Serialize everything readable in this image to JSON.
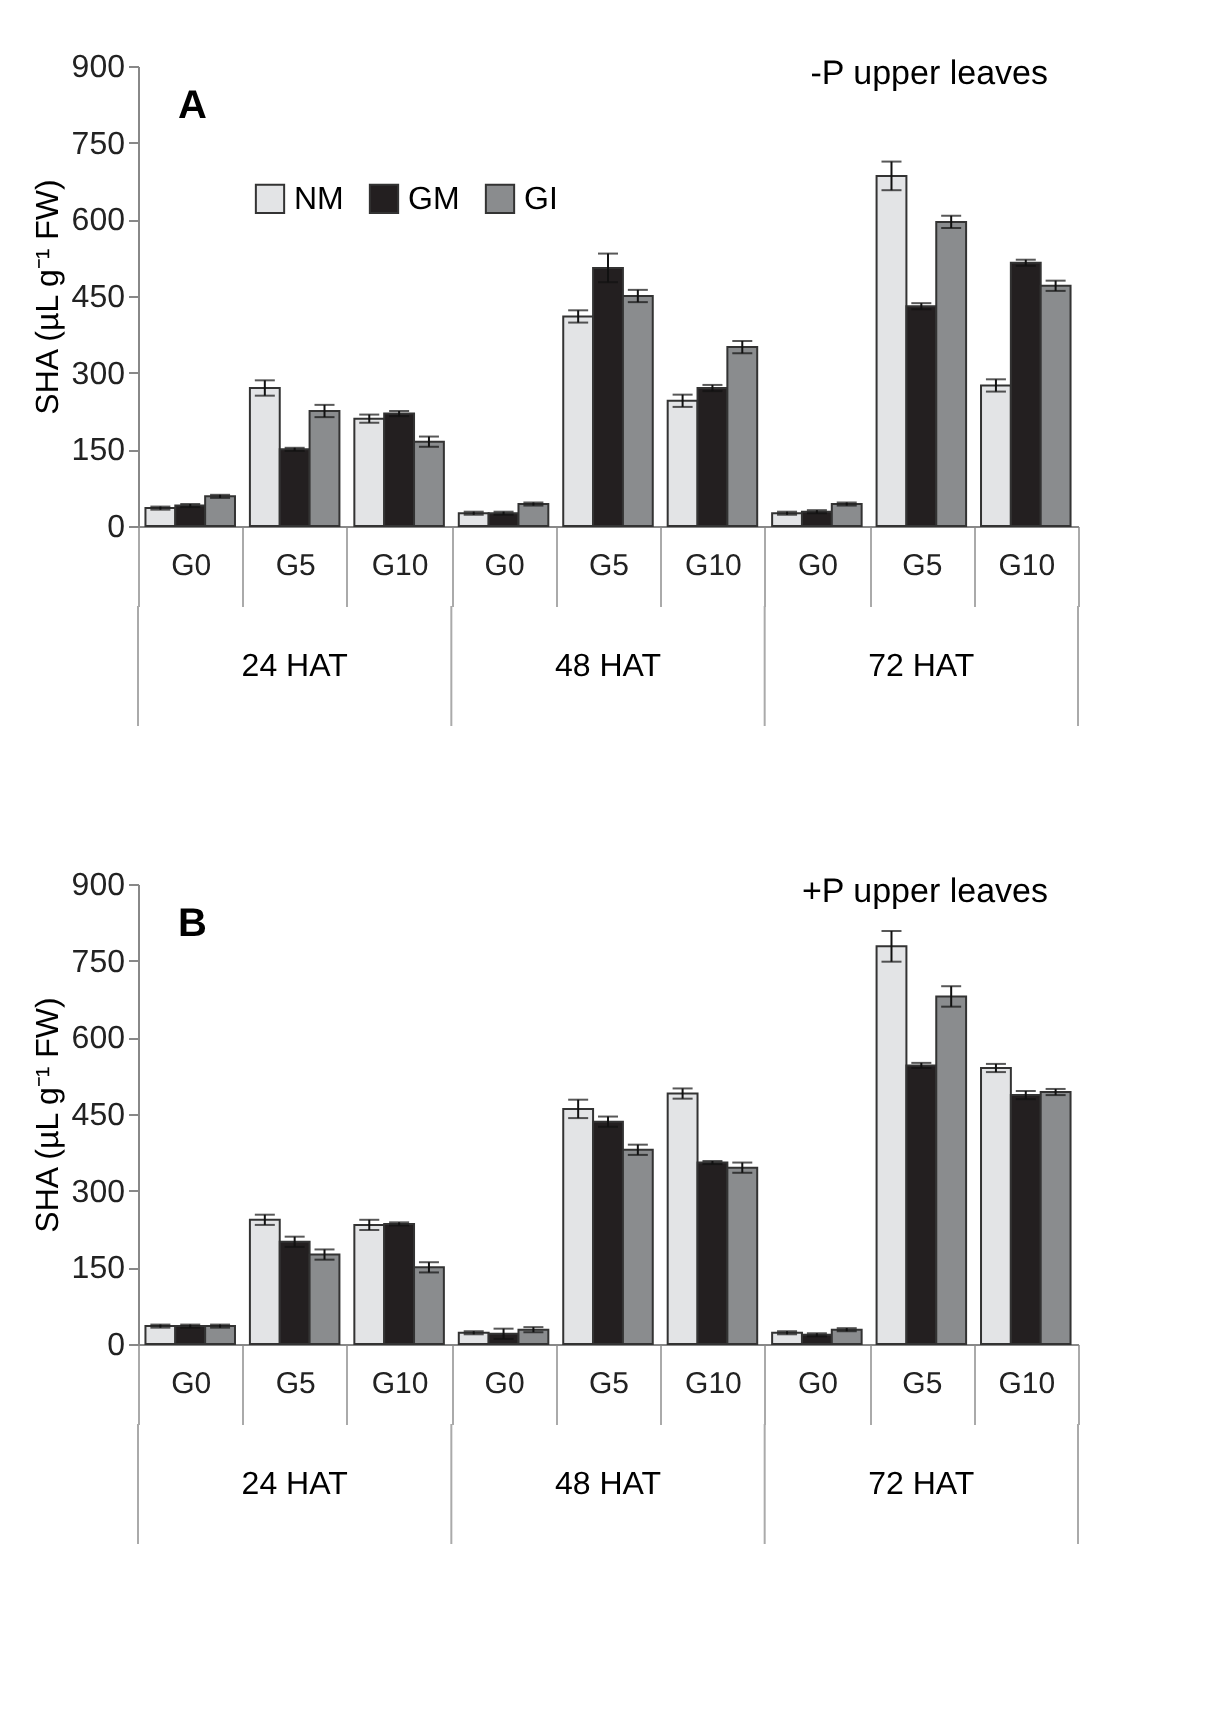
{
  "chart_data": [
    {
      "type": "bar",
      "title": "A",
      "ylabel": "SHA (µL g⁻¹ FW)",
      "categories": [
        "G0",
        "G5",
        "G10",
        "G0",
        "G5",
        "G10",
        "G0",
        "G5",
        "G10"
      ],
      "series": [
        {
          "name": "NM",
          "color": "#e3e4e6",
          "values": [
            35,
            270,
            210,
            25,
            410,
            245,
            25,
            685,
            275
          ],
          "errors": [
            3,
            15,
            8,
            3,
            12,
            12,
            3,
            28,
            12
          ]
        },
        {
          "name": "GM",
          "color": "#231f20",
          "values": [
            40,
            150,
            220,
            25,
            505,
            270,
            28,
            430,
            515
          ],
          "errors": [
            3,
            3,
            5,
            3,
            28,
            6,
            3,
            6,
            6
          ]
        },
        {
          "name": "GI",
          "color": "#8a8c8e",
          "values": [
            58,
            225,
            165,
            43,
            450,
            350,
            43,
            595,
            470
          ],
          "errors": [
            3,
            12,
            10,
            3,
            12,
            12,
            3,
            12,
            10
          ]
        }
      ],
      "annotations": [
        "-P  upper leaves",
        "24 HAT",
        "48 HAT",
        "72 HAT"
      ],
      "ylim": [
        0,
        900
      ],
      "yticks": [
        0,
        150,
        300,
        450,
        600,
        750,
        900
      ],
      "grid": false,
      "legend": "top left"
    },
    {
      "type": "bar",
      "title": "B",
      "ylabel": "SHA (µL g⁻¹ FW)",
      "categories": [
        "G0",
        "G5",
        "G10",
        "G0",
        "G5",
        "G10",
        "G0",
        "G5",
        "G10"
      ],
      "series": [
        {
          "name": "NM",
          "color": "#e3e4e6",
          "values": [
            35,
            243,
            233,
            22,
            460,
            490,
            22,
            778,
            540
          ],
          "errors": [
            3,
            10,
            10,
            3,
            18,
            10,
            3,
            30,
            8
          ]
        },
        {
          "name": "GM",
          "color": "#231f20",
          "values": [
            35,
            200,
            235,
            20,
            435,
            355,
            18,
            545,
            487
          ],
          "errors": [
            3,
            10,
            3,
            10,
            10,
            3,
            3,
            5,
            8
          ]
        },
        {
          "name": "GI",
          "color": "#8a8c8e",
          "values": [
            35,
            175,
            150,
            28,
            380,
            345,
            28,
            680,
            493
          ],
          "errors": [
            3,
            10,
            10,
            5,
            10,
            10,
            3,
            20,
            6
          ]
        }
      ],
      "annotations": [
        "+P  upper leaves",
        "24 HAT",
        "48 HAT",
        "72 HAT"
      ],
      "ylim": [
        0,
        900
      ],
      "yticks": [
        0,
        150,
        300,
        450,
        600,
        750,
        900
      ],
      "grid": false,
      "legend": "top left"
    }
  ]
}
